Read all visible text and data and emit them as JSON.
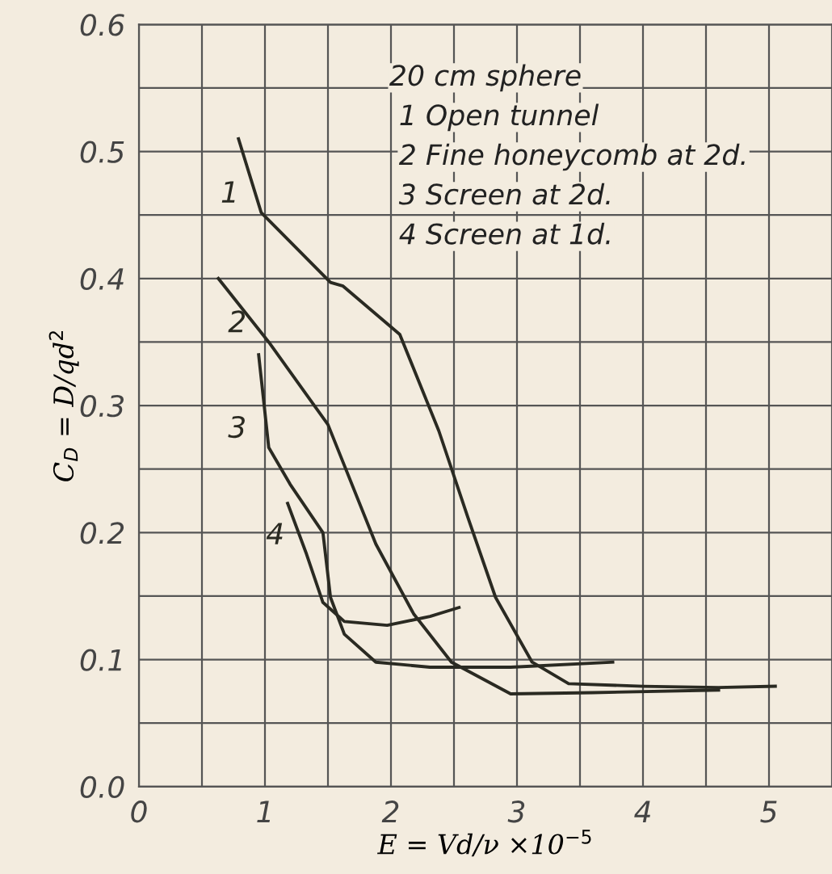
{
  "chart_data": {
    "type": "line",
    "xlabel": "E = Vd/ν ×10$^{−5}$",
    "ylabel": "C$_{D}$ = D/qd$^{2}$",
    "xlim": [
      0,
      5.5
    ],
    "ylim": [
      0,
      0.6
    ],
    "xticks": [
      0,
      {
        "value": 0.5,
        "label": null
      },
      1,
      {
        "value": 1.5,
        "label": null
      },
      2,
      {
        "value": 2.5,
        "label": null
      },
      3,
      {
        "value": 3.5,
        "label": null
      },
      4,
      {
        "value": 4.5,
        "label": null
      },
      5
    ],
    "yticks": [
      {
        "value": 0,
        "label": "0.0"
      },
      {
        "value": 0.05,
        "label": null
      },
      0.1,
      {
        "value": 0.15,
        "label": null
      },
      0.2,
      {
        "value": 0.25,
        "label": null
      },
      0.3,
      {
        "value": 0.35,
        "label": null
      },
      0.4,
      {
        "value": 0.45,
        "label": null
      },
      0.5,
      {
        "value": 0.55,
        "label": null
      },
      0.6
    ],
    "grid": true,
    "line_style": "solid",
    "marker": "none",
    "series": [
      {
        "name": "1",
        "color": "#2a2a22",
        "x": [
          0.79,
          0.97,
          1.52,
          1.62,
          2.07,
          2.38,
          2.61,
          2.83,
          3.12,
          3.41,
          4.0,
          4.6,
          5.05
        ],
        "values": [
          0.51,
          0.452,
          0.397,
          0.394,
          0.356,
          0.28,
          0.212,
          0.149,
          0.098,
          0.081,
          0.079,
          0.078,
          0.079
        ]
      },
      {
        "name": "2",
        "color": "#2a2a22",
        "x": [
          0.63,
          1.03,
          1.5,
          1.88,
          2.18,
          2.48,
          2.95,
          3.6,
          4.6
        ],
        "values": [
          0.4,
          0.35,
          0.285,
          0.191,
          0.136,
          0.098,
          0.073,
          0.074,
          0.076
        ]
      },
      {
        "name": "3",
        "color": "#2a2a22",
        "x": [
          0.95,
          1.03,
          1.2,
          1.46,
          1.52,
          1.63,
          1.88,
          2.31,
          2.95,
          3.76
        ],
        "values": [
          0.34,
          0.267,
          0.238,
          0.2,
          0.149,
          0.12,
          0.098,
          0.094,
          0.094,
          0.098
        ]
      },
      {
        "name": "4",
        "color": "#2a2a22",
        "x": [
          1.18,
          1.33,
          1.46,
          1.63,
          1.97,
          2.31,
          2.54
        ],
        "values": [
          0.223,
          0.183,
          0.145,
          0.13,
          0.127,
          0.134,
          0.141
        ]
      }
    ],
    "annotations": [
      "20 cm sphere",
      "1 Open tunnel",
      "2 Fine honeycomb at 2d.",
      "3 Screen at 2d.",
      "4 Screen at 1d."
    ]
  }
}
